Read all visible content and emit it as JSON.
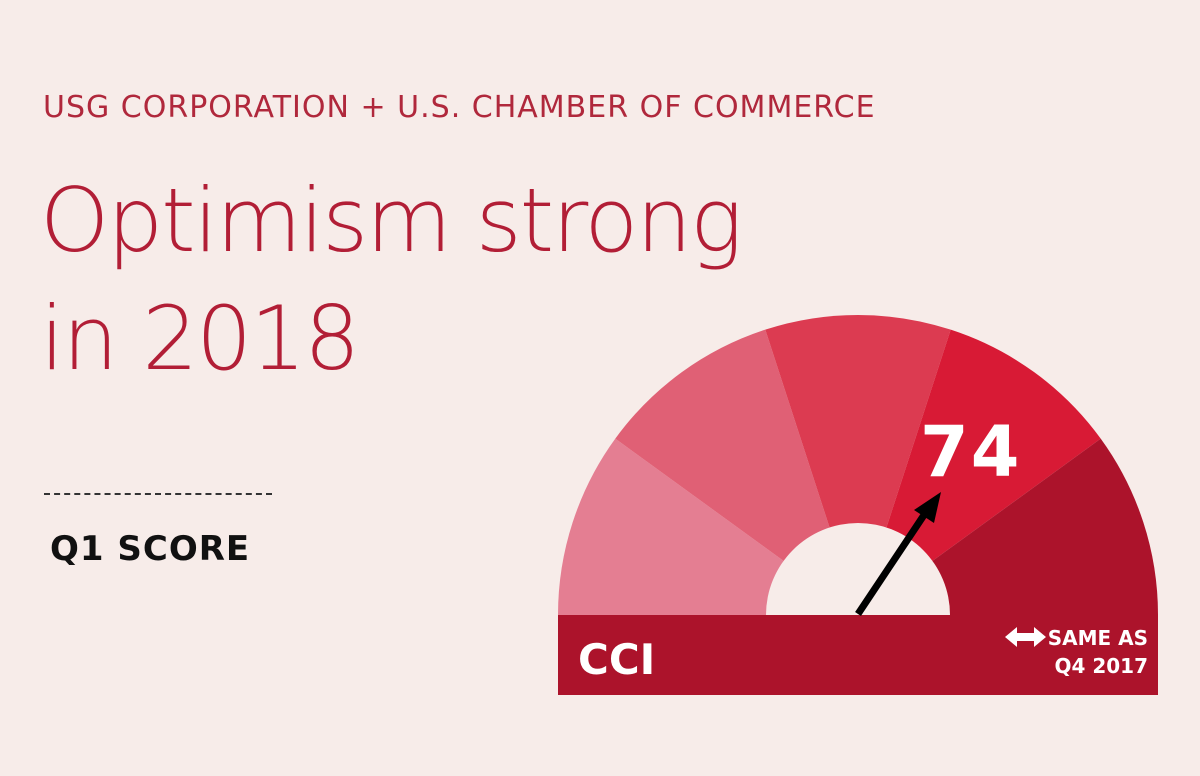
{
  "eyebrow": "USG CORPORATION + U.S. CHAMBER OF COMMERCE",
  "headline": {
    "line1": "Optimism strong",
    "line2": "in 2018"
  },
  "score_label": "Q1 SCORE",
  "gauge": {
    "value": 74,
    "value_text": "74",
    "index_label": "CCI",
    "comparison_line1": "SAME AS",
    "comparison_line2": "Q4 2017",
    "comparison_icon": "double-arrow-icon",
    "segment_colors": [
      "#e47e92",
      "#e06075",
      "#dc3b51",
      "#d81a35",
      "#ac132b"
    ],
    "bar_color": "#ac132b",
    "hub_color": "#f7ece9",
    "needle_color": "#000000"
  }
}
